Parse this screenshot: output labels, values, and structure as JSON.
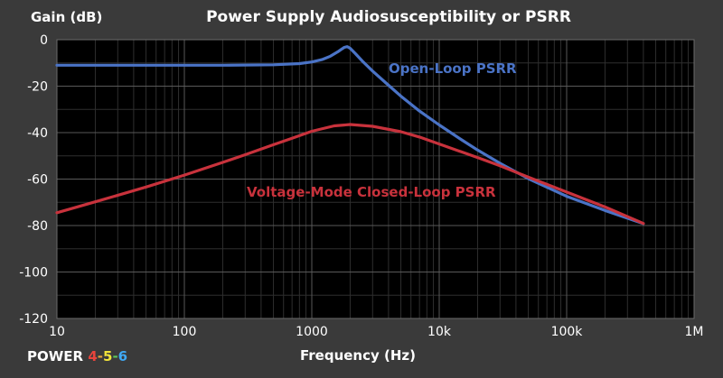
{
  "chart_data": {
    "type": "line",
    "title": "Power Supply Audiosusceptibility or PSRR",
    "ylabel": "Gain (dB)",
    "xlabel": "Frequency (Hz)",
    "x_scale": "log",
    "xlim": [
      10,
      1000000
    ],
    "ylim": [
      -120,
      0
    ],
    "grid": true,
    "x_ticks": [
      {
        "value": 10,
        "label": "10"
      },
      {
        "value": 100,
        "label": "100"
      },
      {
        "value": 1000,
        "label": "1000"
      },
      {
        "value": 10000,
        "label": "10k"
      },
      {
        "value": 100000,
        "label": "100k"
      },
      {
        "value": 1000000,
        "label": "1M"
      }
    ],
    "y_ticks": [
      {
        "value": 0,
        "label": "0"
      },
      {
        "value": -20,
        "label": "-20"
      },
      {
        "value": -40,
        "label": "-40"
      },
      {
        "value": -60,
        "label": "-60"
      },
      {
        "value": -80,
        "label": "-80"
      },
      {
        "value": -100,
        "label": "-100"
      },
      {
        "value": -120,
        "label": "-120"
      }
    ],
    "series": [
      {
        "name": "Open-Loop PSRR",
        "color": "#4a73c6",
        "x": [
          10,
          50,
          100,
          200,
          500,
          800,
          1000,
          1200,
          1400,
          1600,
          1700,
          1800,
          1900,
          2000,
          2200,
          2500,
          3000,
          4000,
          5000,
          7000,
          10000,
          15000,
          20000,
          30000,
          50000,
          100000,
          200000,
          400000
        ],
        "y": [
          -11,
          -11,
          -11,
          -11,
          -10.8,
          -10.3,
          -9.6,
          -8.6,
          -7.1,
          -5.2,
          -4.2,
          -3.3,
          -3.0,
          -3.7,
          -6.0,
          -9.3,
          -13.5,
          -19.6,
          -24.3,
          -30.7,
          -36.7,
          -43.1,
          -47.5,
          -53.2,
          -59.8,
          -67.4,
          -73.5,
          -79.2
        ]
      },
      {
        "name": "Voltage-Mode Closed-Loop PSRR",
        "color": "#c8323c",
        "x": [
          10,
          20,
          50,
          100,
          200,
          300,
          500,
          700,
          1000,
          1500,
          2000,
          3000,
          5000,
          7000,
          10000,
          15000,
          20000,
          30000,
          50000,
          100000,
          200000,
          400000
        ],
        "y": [
          -74.5,
          -69.8,
          -63.4,
          -58.3,
          -52.8,
          -49.5,
          -45.2,
          -42.4,
          -39.4,
          -37.1,
          -36.5,
          -37.3,
          -39.6,
          -41.9,
          -44.9,
          -48.3,
          -50.7,
          -54.3,
          -59.2,
          -65.6,
          -72.0,
          -79.1
        ]
      }
    ]
  },
  "annotations": {
    "open_loop": "Open-Loop PSRR",
    "closed_loop": "Voltage-Mode Closed-Loop PSRR"
  },
  "brand": {
    "word": "POWER",
    "digits": [
      {
        "text": "4",
        "color": "#e8443c"
      },
      {
        "text": "-",
        "color": "#e8a23c"
      },
      {
        "text": "5",
        "color": "#f2e33a"
      },
      {
        "text": "-",
        "color": "#5fc75a"
      },
      {
        "text": "6",
        "color": "#3fa9f5"
      }
    ]
  },
  "colors": {
    "background": "#3a3a3a",
    "plot_area": "#000000",
    "text": "#ffffff",
    "grid": "#595959"
  }
}
